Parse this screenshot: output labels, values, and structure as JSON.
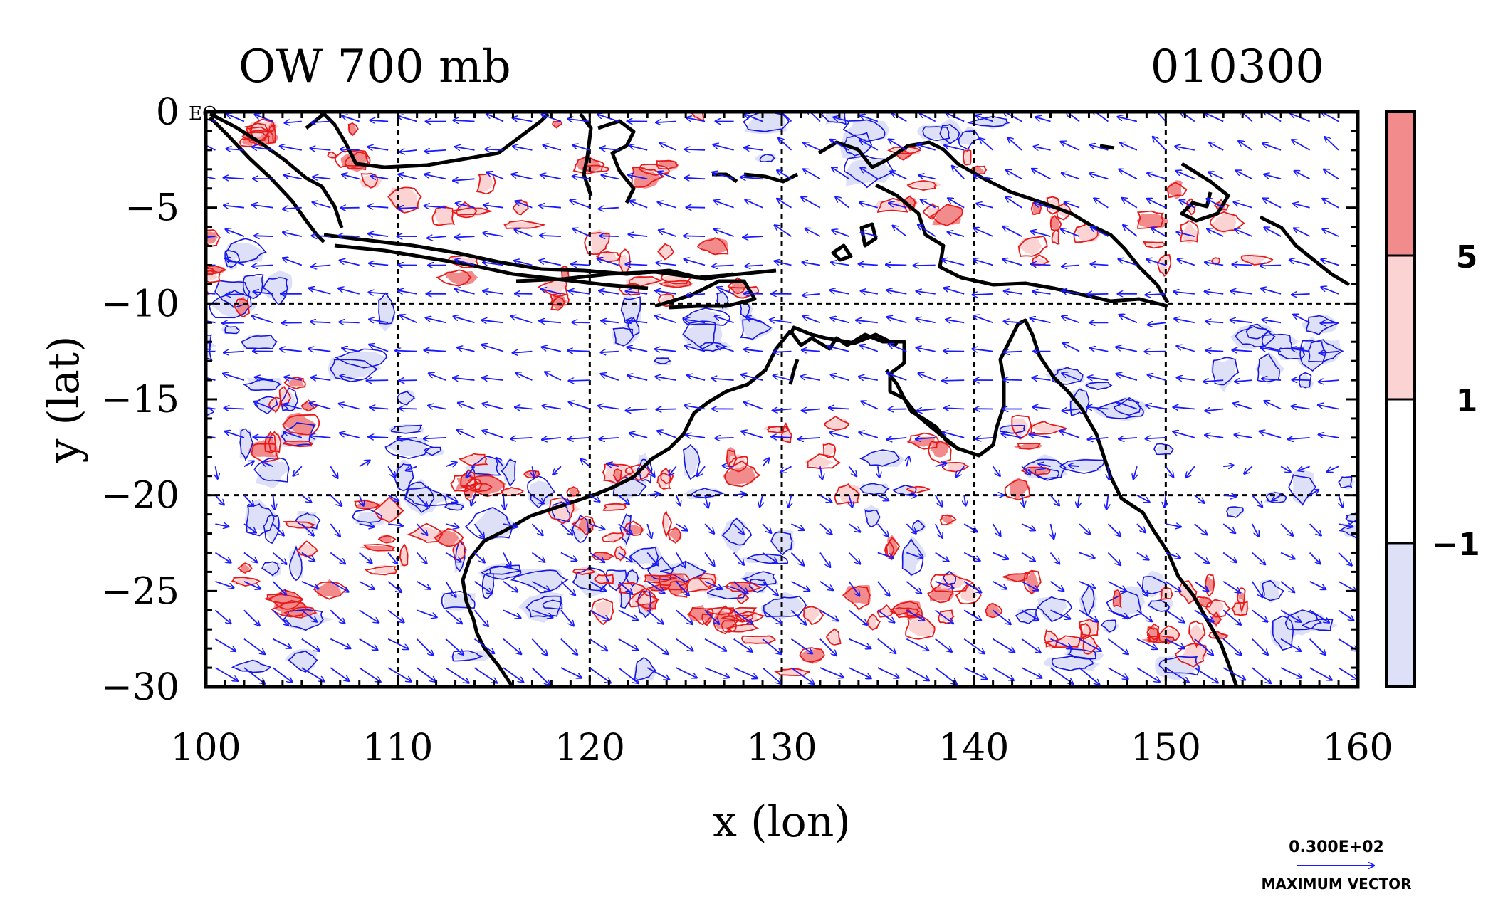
{
  "title_left": "OW 700 mb",
  "title_right": "010300",
  "eq_label": "EQ",
  "xlabel": "x (lon)",
  "ylabel": "y (lat)",
  "x_ticks": [
    "100",
    "110",
    "120",
    "130",
    "140",
    "150",
    "160"
  ],
  "y_ticks": [
    "0",
    "−5",
    "−10",
    "−15",
    "−20",
    "−25",
    "−30"
  ],
  "colorbar": {
    "labels": [
      "5",
      "1",
      "−1"
    ],
    "colors": [
      "#f28b8b",
      "#fbd3d3",
      "#ffffff",
      "#dde0f6"
    ]
  },
  "vector_key": {
    "value_label": "0.300E+02",
    "caption": "MAXIMUM VECTOR",
    "color": "#1a1aff"
  },
  "colors": {
    "positive_contour": "#e8191a",
    "negative_contour": "#1515e0",
    "vectors": "#1a1aff",
    "coast": "#000000"
  },
  "chart_data": {
    "type": "contour",
    "title": "OW 700 mb",
    "valid_time": "010300",
    "xlabel": "x (lon)",
    "ylabel": "y (lat)",
    "xlim": [
      100,
      160
    ],
    "ylim": [
      -30,
      0
    ],
    "grid": true,
    "shading_thresholds": [
      -1,
      1,
      5
    ],
    "vector_max": 30
  }
}
